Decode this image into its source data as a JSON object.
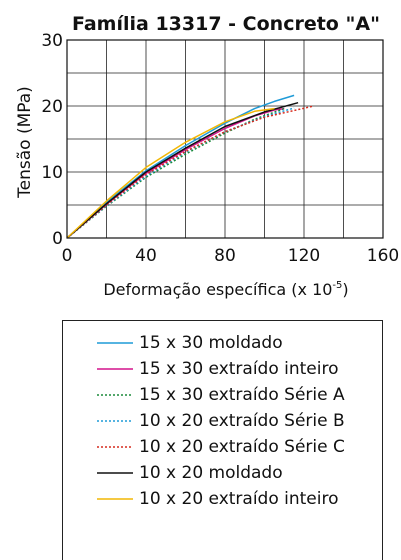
{
  "chart_data": {
    "type": "line",
    "title": "Família 13317 - Concreto \"A\"",
    "xlabel": "Deformação específica (x 10",
    "xlabel_exp": "-5",
    "xlabel_end": ")",
    "ylabel": "Tensão (MPa)",
    "xlim": [
      0,
      160
    ],
    "ylim": [
      0,
      30
    ],
    "xticks": [
      "0",
      "40",
      "80",
      "120",
      "160"
    ],
    "yticks": [
      "0",
      "10",
      "20",
      "30"
    ],
    "grid": true,
    "legend_position": "below",
    "series": [
      {
        "name": "15 x 30 moldado",
        "color": "#1f9bd7",
        "dash": "solid",
        "x": [
          0,
          20,
          40,
          60,
          80,
          95,
          105,
          115
        ],
        "y": [
          0,
          5.4,
          10.2,
          14.0,
          17.4,
          19.6,
          20.7,
          21.6
        ]
      },
      {
        "name": "15 x 30 extraído inteiro",
        "color": "#d4148c",
        "dash": "solid",
        "x": [
          0,
          20,
          40,
          60,
          80,
          95,
          105,
          110
        ],
        "y": [
          0,
          5.1,
          9.8,
          13.4,
          16.6,
          18.5,
          19.4,
          19.6
        ]
      },
      {
        "name": "15 x 30 extraído Série A",
        "color": "#1a8a3a",
        "dash": "dotted",
        "x": [
          0,
          20,
          40,
          60,
          80,
          95,
          110
        ],
        "y": [
          0,
          4.8,
          9.2,
          12.7,
          15.9,
          18.0,
          19.6
        ]
      },
      {
        "name": "10 x 20 extraído Série B",
        "color": "#1f9bd7",
        "dash": "dotted",
        "x": [
          0,
          20,
          40,
          60,
          80,
          100,
          115
        ],
        "y": [
          0,
          4.9,
          9.4,
          13.0,
          16.1,
          18.4,
          19.7
        ]
      },
      {
        "name": "10 x 20 extraído Série C",
        "color": "#d62b1e",
        "dash": "dotted",
        "x": [
          0,
          20,
          40,
          60,
          80,
          100,
          125
        ],
        "y": [
          0,
          5.0,
          9.6,
          13.1,
          16.1,
          18.3,
          20.0
        ]
      },
      {
        "name": "10 x 20 moldado",
        "color": "#111111",
        "dash": "solid",
        "x": [
          0,
          20,
          40,
          60,
          80,
          100,
          117
        ],
        "y": [
          0,
          5.2,
          10.0,
          13.6,
          16.9,
          19.1,
          20.5
        ]
      },
      {
        "name": "10 x 20 extraído inteiro",
        "color": "#f2b705",
        "dash": "solid",
        "x": [
          0,
          20,
          40,
          60,
          80,
          95,
          105
        ],
        "y": [
          0,
          5.6,
          10.7,
          14.5,
          17.6,
          19.2,
          19.6
        ]
      }
    ]
  }
}
